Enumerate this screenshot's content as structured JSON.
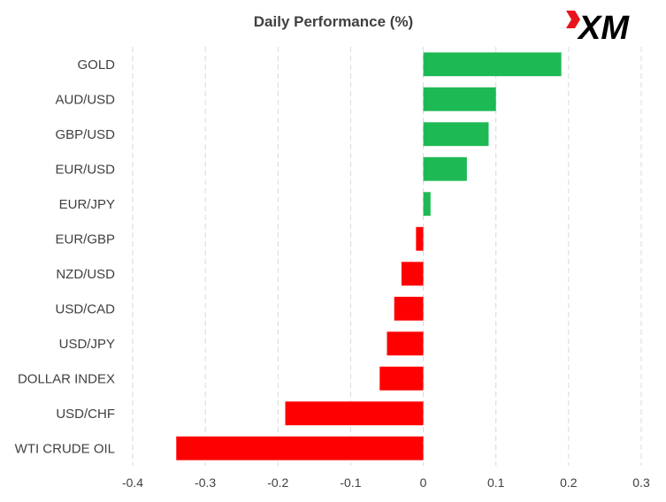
{
  "chart_data": {
    "type": "bar",
    "orientation": "horizontal",
    "title": "Daily Performance (%)",
    "categories": [
      "GOLD",
      "AUD/USD",
      "GBP/USD",
      "EUR/USD",
      "EUR/JPY",
      "EUR/GBP",
      "NZD/USD",
      "USD/CAD",
      "USD/JPY",
      "DOLLAR INDEX",
      "USD/CHF",
      "WTI CRUDE OIL"
    ],
    "values": [
      0.19,
      0.1,
      0.09,
      0.06,
      0.01,
      -0.01,
      -0.03,
      -0.04,
      -0.05,
      -0.06,
      -0.19,
      -0.34
    ],
    "xlim": [
      -0.4,
      0.3
    ],
    "xticks": [
      -0.4,
      -0.3,
      -0.2,
      -0.1,
      0,
      0.1,
      0.2,
      0.3
    ],
    "xtick_labels": [
      "-0.4",
      "-0.3",
      "-0.2",
      "-0.1",
      "0",
      "0.1",
      "0.2",
      "0.3"
    ],
    "grid": "vertical dashed",
    "legend": "none",
    "colors": {
      "positive": "#1db954",
      "negative": "#ff0000",
      "grid": "#d9d9d9",
      "text": "#404040"
    }
  },
  "brand": {
    "logo_text": "XM",
    "logo_color": "#000000",
    "logo_accent": "#e8141c"
  }
}
